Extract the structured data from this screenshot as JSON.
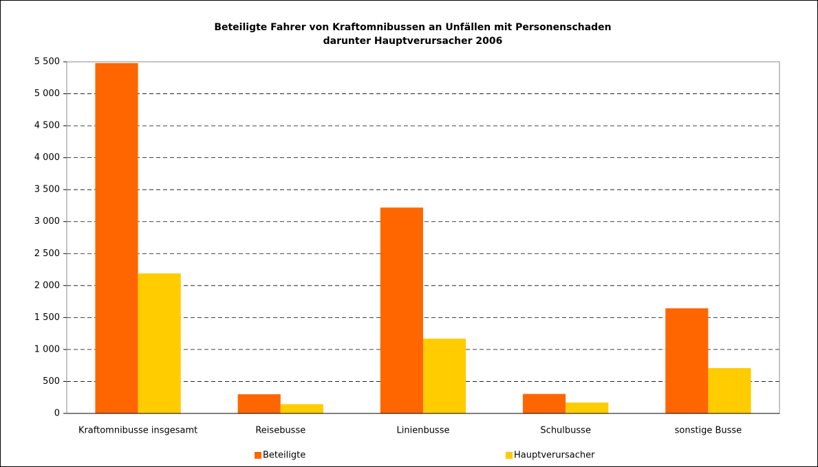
{
  "chart_data": {
    "type": "bar",
    "title": "Beteiligte Fahrer von Kraftomnibussen an Unfällen mit Personenschaden",
    "subtitle": "darunter Hauptverursacher 2006",
    "categories": [
      "Kraftomnibusse insgesamt",
      "Reisebusse",
      "Linienbusse",
      "Schulbusse",
      "sonstige Busse"
    ],
    "series": [
      {
        "name": "Beteiligte",
        "color": "#ff6600",
        "values": [
          5480,
          300,
          3220,
          305,
          1645
        ]
      },
      {
        "name": "Hauptverursacher",
        "color": "#ffcc00",
        "values": [
          2190,
          145,
          1170,
          170,
          710
        ]
      }
    ],
    "ylim": [
      0,
      5500
    ],
    "yticks": [
      0,
      500,
      {
        "value": 1000,
        "label": "1 000"
      },
      {
        "value": 1500,
        "label": "1 500"
      },
      {
        "value": 2000,
        "label": "2 000"
      },
      {
        "value": 2500,
        "label": "2 500"
      },
      {
        "value": 3000,
        "label": "3 000"
      },
      {
        "value": 3500,
        "label": "3 500"
      },
      {
        "value": 4000,
        "label": "4 000"
      },
      {
        "value": 4500,
        "label": "4 500"
      },
      {
        "value": 5000,
        "label": "5 000"
      },
      {
        "value": 5500,
        "label": "5 500"
      }
    ],
    "grid": true,
    "legend": "bottom"
  }
}
